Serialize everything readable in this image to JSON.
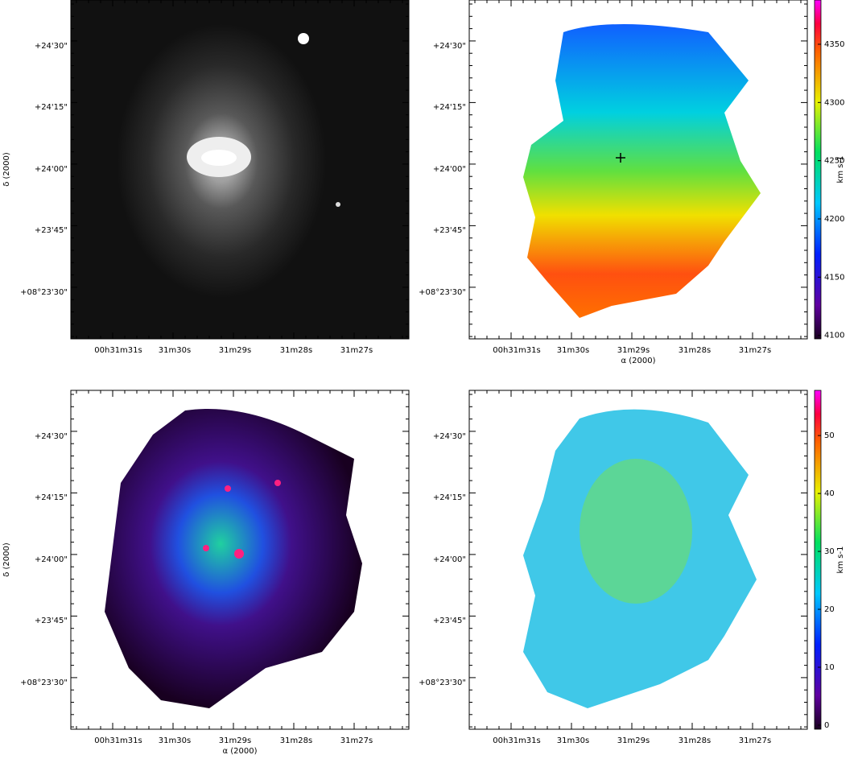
{
  "figure": {
    "panels": [
      {
        "yticks": [
          "+24'30\"",
          "+24'15\"",
          "+24'00\"",
          "+23'45\"",
          "+08°23'30\""
        ],
        "xticks": [
          "00h31m31s",
          "31m30s",
          "31m29s",
          "31m28s",
          "31m27s"
        ],
        "ylabel": "δ (2000)"
      },
      {
        "yticks": [
          "+24'30\"",
          "+24'15\"",
          "+24'00\"",
          "+23'45\"",
          "+08°23'30\""
        ],
        "xticks": [
          "00h31m31s",
          "31m30s",
          "31m29s",
          "31m28s",
          "31m27s"
        ],
        "xlabel": "α (2000)",
        "colorbar": {
          "label": "km s-1",
          "range": [
            4097,
            4388
          ],
          "ticks": [
            4100,
            4150,
            4200,
            4250,
            4300,
            4350
          ]
        }
      },
      {
        "yticks": [
          "+24'30\"",
          "+24'15\"",
          "+24'00\"",
          "+23'45\"",
          "+08°23'30\""
        ],
        "xticks": [
          "00h31m31s",
          "31m30s",
          "31m29s",
          "31m28s",
          "31m27s"
        ],
        "xlabel": "α (2000)",
        "ylabel": "δ (2000)"
      },
      {
        "yticks": [
          "+24'30\"",
          "+24'15\"",
          "+24'00\"",
          "+23'45\"",
          "+08°23'30\""
        ],
        "xticks": [
          "00h31m31s",
          "31m30s",
          "31m29s",
          "31m28s",
          "31m27s"
        ],
        "colorbar": {
          "label": "km s-1",
          "range": [
            -0.7,
            57.8
          ],
          "ticks": [
            0,
            10,
            20,
            30,
            40,
            50
          ]
        }
      }
    ]
  }
}
